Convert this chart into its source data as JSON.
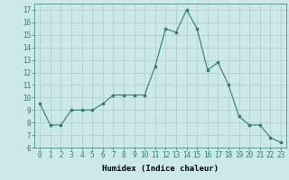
{
  "x": [
    0,
    1,
    2,
    3,
    4,
    5,
    6,
    7,
    8,
    9,
    10,
    11,
    12,
    13,
    14,
    15,
    16,
    17,
    18,
    19,
    20,
    21,
    22,
    23
  ],
  "y": [
    9.5,
    7.8,
    7.8,
    9.0,
    9.0,
    9.0,
    9.5,
    10.2,
    10.2,
    10.2,
    10.2,
    12.5,
    15.5,
    15.2,
    17.0,
    15.5,
    12.2,
    12.8,
    11.0,
    8.5,
    7.8,
    7.8,
    6.8,
    6.4
  ],
  "xlim": [
    -0.5,
    23.5
  ],
  "ylim": [
    6,
    17.5
  ],
  "yticks": [
    6,
    7,
    8,
    9,
    10,
    11,
    12,
    13,
    14,
    15,
    16,
    17
  ],
  "xticks": [
    0,
    1,
    2,
    3,
    4,
    5,
    6,
    7,
    8,
    9,
    10,
    11,
    12,
    13,
    14,
    15,
    16,
    17,
    18,
    19,
    20,
    21,
    22,
    23
  ],
  "xlabel": "Humidex (Indice chaleur)",
  "line_color": "#2d7f6b",
  "marker": "s",
  "marker_size": 2,
  "bg_color": "#cce8e8",
  "grid_color": "#aacccc",
  "label_fontsize": 6.5,
  "tick_fontsize": 5.5
}
